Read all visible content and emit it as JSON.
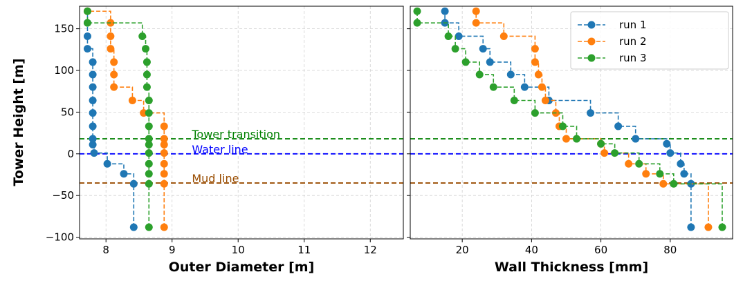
{
  "chart_data": {
    "type": "line",
    "step_style": "steps-post",
    "ylabel": "Tower Height [m]",
    "ylim": [
      -102,
      177
    ],
    "yticks": [
      -100,
      -50,
      0,
      50,
      100,
      150
    ],
    "grid": true,
    "colors": {
      "run 1": "#1f77b4",
      "run 2": "#ff7f0e",
      "run 3": "#2ca02c"
    },
    "ref_lines": [
      {
        "name": "tower-transition",
        "label": "Tower transition",
        "y": 18,
        "color": "#008000"
      },
      {
        "name": "water-line",
        "label": "Water line",
        "y": 0,
        "color": "#0000ff"
      },
      {
        "name": "mud-line",
        "label": "Mud line",
        "y": -35,
        "color": "#994c00"
      }
    ],
    "legend": {
      "position": "top-right",
      "panel": "wall-thickness"
    },
    "panels": [
      {
        "name": "outer-diameter",
        "xlabel": "Outer Diameter [m]",
        "xlim": [
          7.6,
          12.5
        ],
        "xticks": [
          8,
          9,
          10,
          11,
          12
        ],
        "series": [
          {
            "name": "run 1",
            "points": [
              [
                8.42,
                -88
              ],
              [
                8.42,
                -36
              ],
              [
                8.27,
                -24
              ],
              [
                8.02,
                -12
              ],
              [
                7.82,
                1
              ],
              [
                7.8,
                11
              ],
              [
                7.8,
                18
              ],
              [
                7.8,
                33
              ],
              [
                7.8,
                49
              ],
              [
                7.8,
                64
              ],
              [
                7.8,
                80
              ],
              [
                7.8,
                95
              ],
              [
                7.8,
                110
              ],
              [
                7.72,
                126
              ],
              [
                7.72,
                141
              ],
              [
                7.72,
                157
              ],
              [
                7.72,
                171
              ]
            ]
          },
          {
            "name": "run 2",
            "points": [
              [
                8.88,
                -88
              ],
              [
                8.88,
                -36
              ],
              [
                8.88,
                -24
              ],
              [
                8.88,
                -12
              ],
              [
                8.88,
                1
              ],
              [
                8.88,
                11
              ],
              [
                8.88,
                18
              ],
              [
                8.88,
                33
              ],
              [
                8.57,
                49
              ],
              [
                8.4,
                64
              ],
              [
                8.12,
                80
              ],
              [
                8.12,
                95
              ],
              [
                8.12,
                110
              ],
              [
                8.07,
                126
              ],
              [
                8.07,
                141
              ],
              [
                8.07,
                157
              ],
              [
                7.72,
                171
              ]
            ]
          },
          {
            "name": "run 3",
            "points": [
              [
                8.65,
                -88
              ],
              [
                8.65,
                -36
              ],
              [
                8.65,
                -24
              ],
              [
                8.65,
                -12
              ],
              [
                8.65,
                1
              ],
              [
                8.65,
                11
              ],
              [
                8.65,
                18
              ],
              [
                8.65,
                33
              ],
              [
                8.65,
                49
              ],
              [
                8.65,
                64
              ],
              [
                8.62,
                80
              ],
              [
                8.62,
                95
              ],
              [
                8.62,
                110
              ],
              [
                8.6,
                126
              ],
              [
                8.55,
                141
              ],
              [
                7.72,
                157
              ],
              [
                7.72,
                171
              ]
            ]
          }
        ]
      },
      {
        "name": "wall-thickness",
        "xlabel": "Wall Thickness [mm]",
        "xlim": [
          5,
          98
        ],
        "xticks": [
          20,
          40,
          60,
          80
        ],
        "series": [
          {
            "name": "run 1",
            "points": [
              [
                86,
                -88
              ],
              [
                86,
                -36
              ],
              [
                84,
                -24
              ],
              [
                83,
                -12
              ],
              [
                80,
                1
              ],
              [
                79,
                12
              ],
              [
                70,
                18
              ],
              [
                65,
                33
              ],
              [
                57,
                49
              ],
              [
                45,
                64
              ],
              [
                38,
                80
              ],
              [
                34,
                95
              ],
              [
                28,
                110
              ],
              [
                26,
                126
              ],
              [
                19,
                141
              ],
              [
                15,
                157
              ],
              [
                15,
                171
              ]
            ]
          },
          {
            "name": "run 2",
            "points": [
              [
                91,
                -88
              ],
              [
                78,
                -36
              ],
              [
                73,
                -24
              ],
              [
                68,
                -12
              ],
              [
                61,
                1
              ],
              [
                60,
                12
              ],
              [
                50,
                18
              ],
              [
                48,
                33
              ],
              [
                47,
                49
              ],
              [
                44,
                64
              ],
              [
                43,
                80
              ],
              [
                42,
                95
              ],
              [
                41,
                110
              ],
              [
                41,
                126
              ],
              [
                32,
                141
              ],
              [
                24,
                157
              ],
              [
                24,
                171
              ]
            ]
          },
          {
            "name": "run 3",
            "points": [
              [
                95,
                -88
              ],
              [
                81,
                -36
              ],
              [
                77,
                -24
              ],
              [
                71,
                -12
              ],
              [
                64,
                1
              ],
              [
                60,
                12
              ],
              [
                53,
                18
              ],
              [
                49,
                33
              ],
              [
                41,
                49
              ],
              [
                35,
                64
              ],
              [
                29,
                80
              ],
              [
                25,
                95
              ],
              [
                21,
                110
              ],
              [
                18,
                126
              ],
              [
                16,
                141
              ],
              [
                7,
                157
              ],
              [
                7,
                171
              ]
            ]
          }
        ]
      }
    ]
  }
}
